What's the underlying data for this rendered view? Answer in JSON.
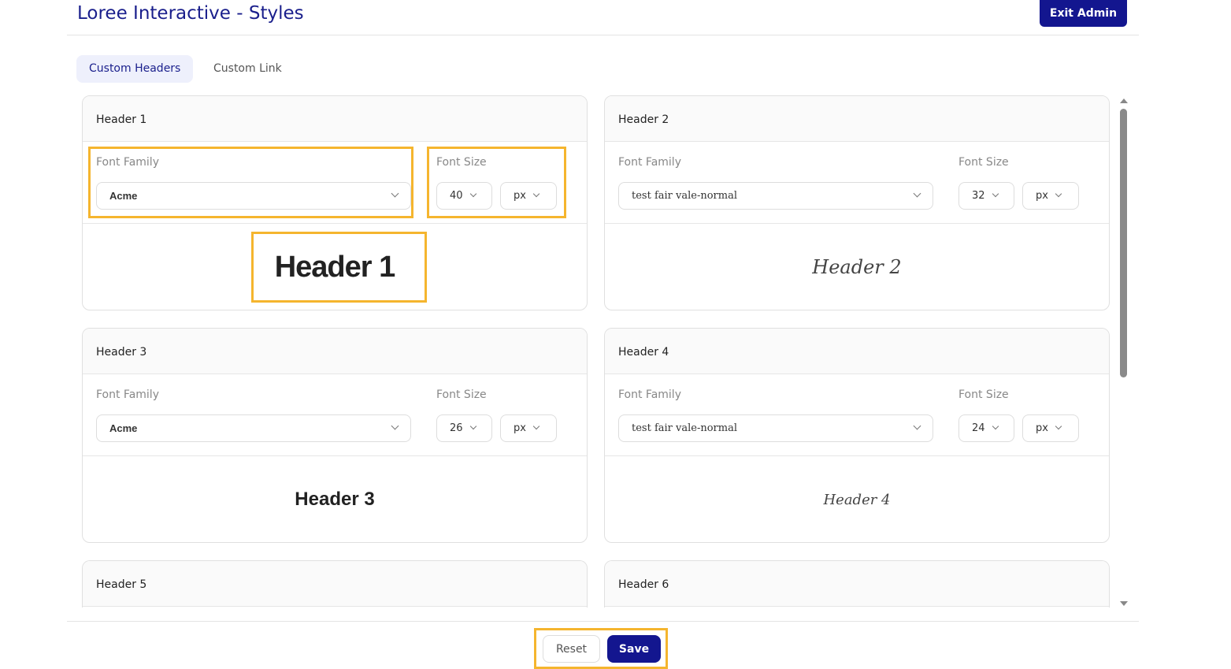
{
  "header": {
    "title": "Loree Interactive - Styles",
    "exit_label": "Exit Admin"
  },
  "tabs": [
    {
      "label": "Custom Headers",
      "active": true
    },
    {
      "label": "Custom Link",
      "active": false
    }
  ],
  "labels": {
    "font_family": "Font Family",
    "font_size": "Font Size"
  },
  "cards": [
    {
      "title": "Header 1",
      "font_family": "Acme",
      "size": "40",
      "unit": "px",
      "preview": "Header 1"
    },
    {
      "title": "Header 2",
      "font_family": "test fair vale-normal",
      "size": "32",
      "unit": "px",
      "preview": "Header 2"
    },
    {
      "title": "Header 3",
      "font_family": "Acme",
      "size": "26",
      "unit": "px",
      "preview": "Header 3"
    },
    {
      "title": "Header 4",
      "font_family": "test fair vale-normal",
      "size": "24",
      "unit": "px",
      "preview": "Header 4"
    },
    {
      "title": "Header 5"
    },
    {
      "title": "Header 6"
    }
  ],
  "footer": {
    "reset_label": "Reset",
    "save_label": "Save"
  },
  "colors": {
    "primary": "#13168f",
    "highlight": "#f5b52e"
  }
}
